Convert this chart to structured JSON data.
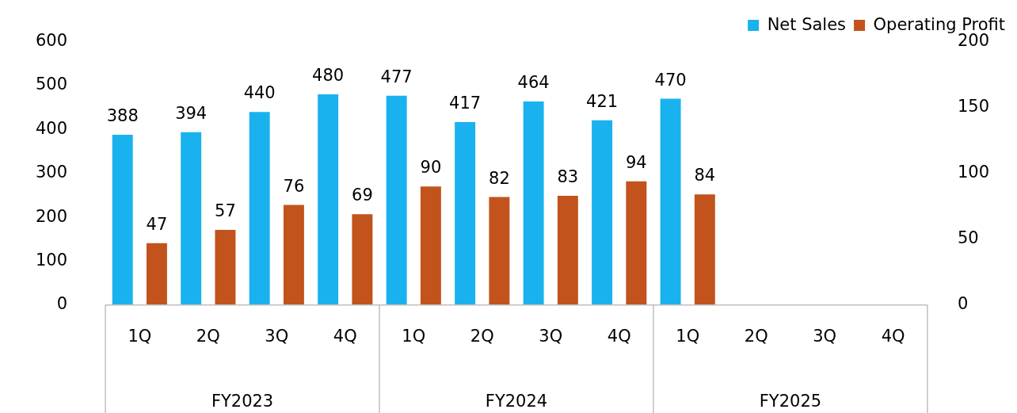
{
  "chart_data": {
    "type": "bar",
    "categories": [
      "1Q",
      "2Q",
      "3Q",
      "4Q",
      "1Q",
      "2Q",
      "3Q",
      "4Q",
      "1Q",
      "2Q",
      "3Q",
      "4Q"
    ],
    "series": [
      {
        "name": "Net Sales",
        "color": "#1ab2ee",
        "values": [
          388,
          394,
          440,
          480,
          477,
          417,
          464,
          421,
          470,
          null,
          null,
          null
        ]
      },
      {
        "name": "Operating Profit",
        "color": "#c2531c",
        "axis": "y2",
        "values": [
          47,
          57,
          76,
          69,
          90,
          82,
          83,
          94,
          84,
          null,
          null,
          null
        ]
      }
    ],
    "ylim": [
      0,
      600
    ],
    "yticks": [
      0,
      100,
      200,
      300,
      400,
      500,
      600
    ],
    "y2lim": [
      0,
      200
    ],
    "y2ticks": [
      0,
      50,
      100,
      150,
      200
    ],
    "annotations": [
      "FY2023",
      "FY2024",
      "FY2025"
    ],
    "data_labels": true,
    "grid": false,
    "legend": "top right"
  }
}
